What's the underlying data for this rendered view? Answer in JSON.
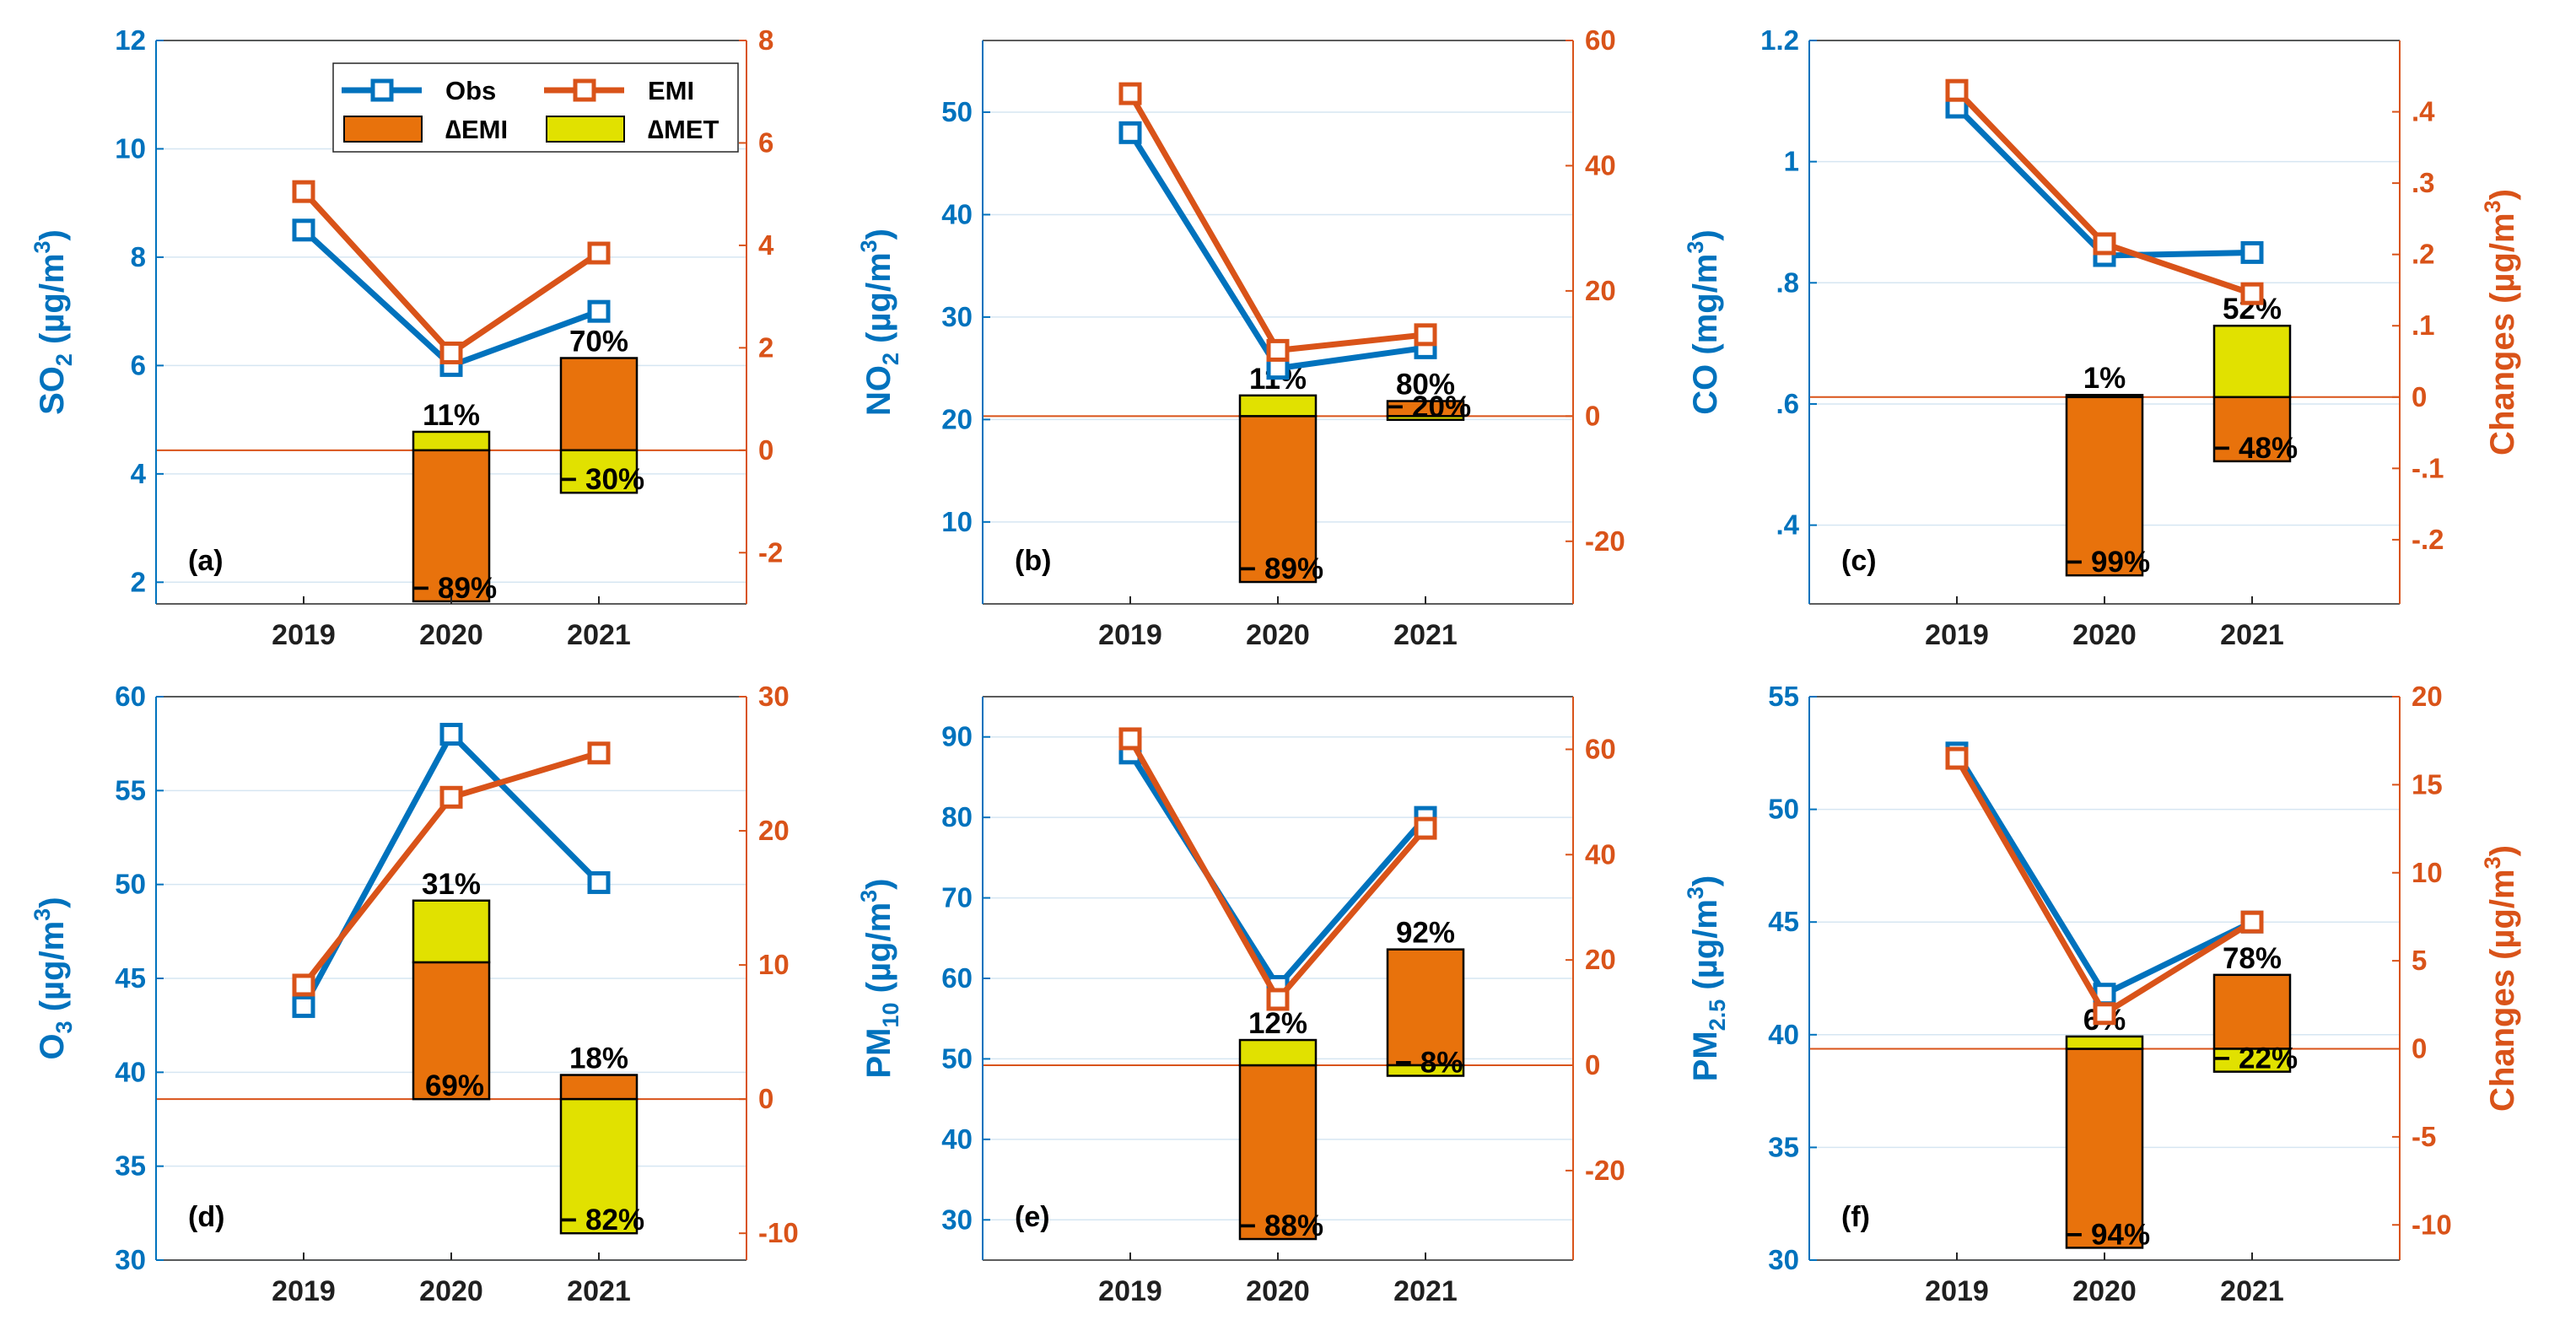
{
  "colors": {
    "obs": "#0072BD",
    "emi": "#D95319",
    "d_emi": "#E8720C",
    "d_met": "#E1E100",
    "axis": "#262626",
    "grid": "#D6E6F2"
  },
  "legend": {
    "obs": "Obs",
    "emi": "EMI",
    "d_emi": "∆EMI",
    "d_met": "∆MET"
  },
  "chart_data": [
    {
      "type": "line+stacked-bar",
      "panel": "(a)",
      "ylabel_main": "SO",
      "ylabel_sub": "2",
      "ylabel_unit": "(µg/m",
      "ylabel_sup": "3",
      "ylabel_close": ")",
      "ylabel_right": "",
      "categories": [
        "2019",
        "2020",
        "2021"
      ],
      "ylim": [
        1.6,
        12
      ],
      "yticks": [
        2,
        4,
        6,
        8,
        10,
        12
      ],
      "y2lim": [
        -3.0,
        8
      ],
      "y2ticks": [
        -2,
        0,
        2,
        4,
        6,
        8
      ],
      "obs": [
        8.5,
        6.0,
        7.0
      ],
      "emi": [
        5.05,
        1.9,
        3.85
      ],
      "bars": [
        {
          "year": "2020",
          "d_emi": -2.95,
          "d_met": 0.36,
          "top_label": "11%",
          "bottom_label": "− 89%"
        },
        {
          "year": "2021",
          "d_emi": 1.8,
          "d_met": -0.83,
          "top_label": "70%",
          "bottom_label": "− 30%"
        }
      ]
    },
    {
      "type": "line+stacked-bar",
      "panel": "(b)",
      "ylabel_main": "NO",
      "ylabel_sub": "2",
      "ylabel_unit": "(µg/m",
      "ylabel_sup": "3",
      "ylabel_close": ")",
      "ylabel_right": "",
      "categories": [
        "2019",
        "2020",
        "2021"
      ],
      "ylim": [
        2,
        57
      ],
      "yticks": [
        10,
        20,
        30,
        40,
        50
      ],
      "y2lim": [
        -30,
        60
      ],
      "y2ticks": [
        -20,
        0,
        20,
        40,
        60
      ],
      "obs": [
        48.0,
        25.0,
        27.0
      ],
      "emi": [
        51.5,
        10.5,
        13.0
      ],
      "bars": [
        {
          "year": "2020",
          "d_emi": -26.5,
          "d_met": 3.3,
          "top_label": "11%",
          "bottom_label": "− 89%"
        },
        {
          "year": "2021",
          "d_emi": 2.4,
          "d_met": -0.6,
          "top_label": "80%",
          "bottom_label": "− 20%"
        }
      ]
    },
    {
      "type": "line+stacked-bar",
      "panel": "(c)",
      "ylabel_main": "CO",
      "ylabel_sub": "",
      "ylabel_unit": "(mg/m",
      "ylabel_sup": "3",
      "ylabel_close": ")",
      "ylabel_right": "Changes (µg/m",
      "categories": [
        "2019",
        "2020",
        "2021"
      ],
      "ylim": [
        0.27,
        1.2
      ],
      "yticks": [
        0.4,
        0.6,
        0.8,
        1.0,
        1.2
      ],
      "y2lim": [
        -0.29,
        0.5
      ],
      "y2ticks": [
        -0.2,
        -0.1,
        0,
        0.1,
        0.2,
        0.3,
        0.4
      ],
      "obs": [
        1.09,
        0.845,
        0.85
      ],
      "emi": [
        0.43,
        0.215,
        0.145
      ],
      "bars": [
        {
          "year": "2020",
          "d_emi": -0.25,
          "d_met": 0.003,
          "top_label": "1%",
          "bottom_label": "− 99%"
        },
        {
          "year": "2021",
          "d_emi": -0.09,
          "d_met": 0.1,
          "top_label": "52%",
          "bottom_label": "− 48%"
        }
      ]
    },
    {
      "type": "line+stacked-bar",
      "panel": "(d)",
      "ylabel_main": "O",
      "ylabel_sub": "3",
      "ylabel_unit": "(µg/m",
      "ylabel_sup": "3",
      "ylabel_close": ")",
      "ylabel_right": "",
      "categories": [
        "2019",
        "2020",
        "2021"
      ],
      "ylim": [
        30,
        60
      ],
      "yticks": [
        30,
        35,
        40,
        45,
        50,
        55,
        60
      ],
      "y2lim": [
        -12,
        30
      ],
      "y2ticks": [
        -10,
        0,
        10,
        20,
        30
      ],
      "obs": [
        43.5,
        58.0,
        50.1
      ],
      "emi": [
        8.5,
        22.5,
        25.8
      ],
      "bars": [
        {
          "year": "2020",
          "d_emi": 10.2,
          "d_met": 4.6,
          "top_label": "31%",
          "bottom_label": "69%"
        },
        {
          "year": "2021",
          "d_emi": 1.8,
          "d_met": -10.0,
          "top_label": "18%",
          "bottom_label": "− 82%"
        }
      ]
    },
    {
      "type": "line+stacked-bar",
      "panel": "(e)",
      "ylabel_main": "PM",
      "ylabel_sub": "10",
      "ylabel_unit": "(µg/m",
      "ylabel_sup": "3",
      "ylabel_close": ")",
      "ylabel_right": "",
      "categories": [
        "2019",
        "2020",
        "2021"
      ],
      "ylim": [
        25,
        95
      ],
      "yticks": [
        30,
        40,
        50,
        60,
        70,
        80,
        90
      ],
      "y2lim": [
        -37,
        70
      ],
      "y2ticks": [
        -20,
        0,
        20,
        40,
        60
      ],
      "obs": [
        88.0,
        59.0,
        80.0
      ],
      "emi": [
        62.0,
        12.5,
        45.0
      ],
      "bars": [
        {
          "year": "2020",
          "d_emi": -33.0,
          "d_met": 4.8,
          "top_label": "12%",
          "bottom_label": "− 88%"
        },
        {
          "year": "2021",
          "d_emi": 22.0,
          "d_met": -2.0,
          "top_label": "92%",
          "bottom_label": "− 8%"
        }
      ]
    },
    {
      "type": "line+stacked-bar",
      "panel": "(f)",
      "ylabel_main": "PM",
      "ylabel_sub": "2.5",
      "ylabel_unit": "(µg/m",
      "ylabel_sup": "3",
      "ylabel_close": ")",
      "ylabel_right": "Changes (µg/m",
      "categories": [
        "2019",
        "2020",
        "2021"
      ],
      "ylim": [
        30,
        55
      ],
      "yticks": [
        30,
        35,
        40,
        45,
        50,
        55
      ],
      "y2lim": [
        -12,
        20
      ],
      "y2ticks": [
        -10,
        -5,
        0,
        5,
        10,
        15,
        20
      ],
      "obs": [
        52.5,
        41.8,
        45.0
      ],
      "emi": [
        16.5,
        2.0,
        7.2
      ],
      "bars": [
        {
          "year": "2020",
          "d_emi": -11.3,
          "d_met": 0.7,
          "top_label": "6%",
          "bottom_label": "− 94%"
        },
        {
          "year": "2021",
          "d_emi": 4.2,
          "d_met": -1.3,
          "top_label": "78%",
          "bottom_label": "− 22%"
        }
      ]
    }
  ]
}
